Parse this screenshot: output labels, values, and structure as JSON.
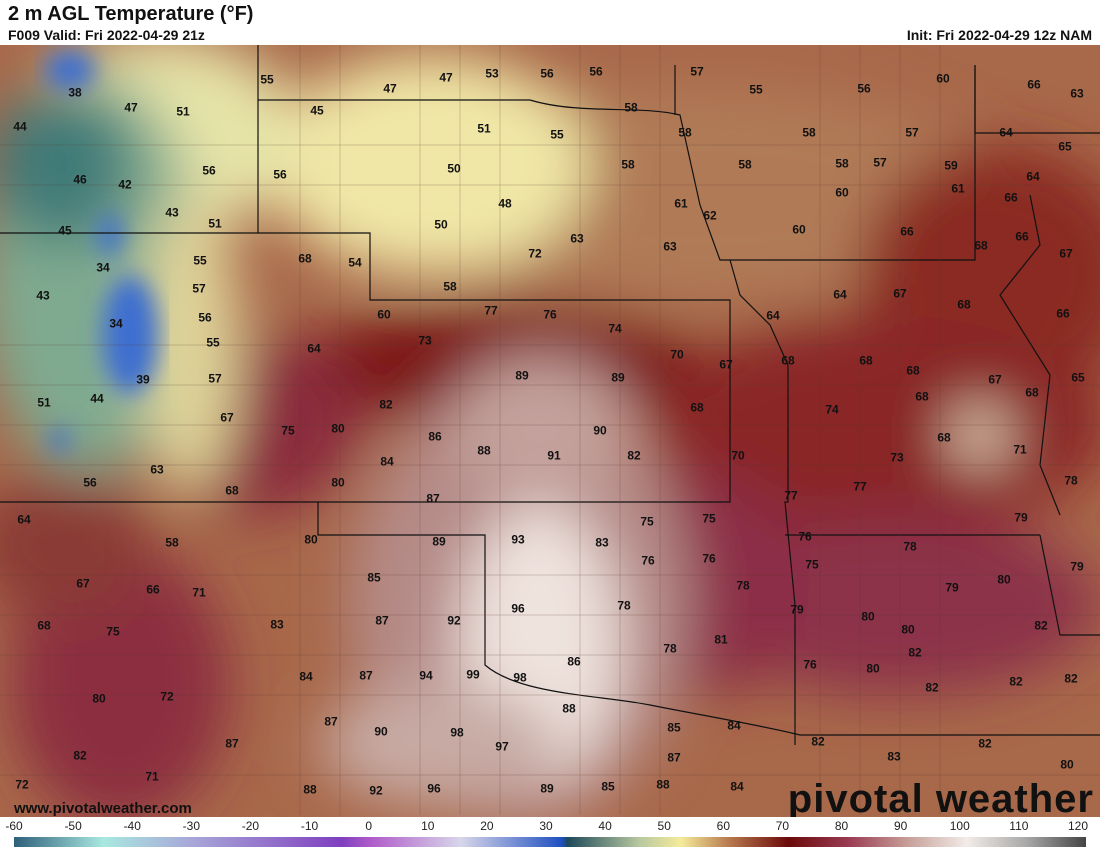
{
  "header": {
    "title": "2 m AGL Temperature (°F)",
    "valid": "F009 Valid: Fri 2022-04-29 21z",
    "init": "Init: Fri 2022-04-29 12z NAM"
  },
  "map": {
    "variable": "2 m temperature",
    "unit": "°F",
    "station_values": [
      38,
      47,
      51,
      44,
      46,
      42,
      56,
      43,
      51,
      45,
      34,
      55,
      43,
      57,
      56,
      34,
      55,
      39,
      57,
      51,
      44,
      67,
      63,
      56,
      68,
      55,
      47,
      47,
      53,
      56,
      56,
      57,
      55,
      56,
      60,
      66,
      63,
      45,
      51,
      55,
      58,
      58,
      58,
      57,
      64,
      65,
      56,
      50,
      58,
      58,
      58,
      57,
      59,
      61,
      64,
      66,
      48,
      50,
      61,
      62,
      60,
      60,
      66,
      68,
      66,
      67,
      68,
      54,
      72,
      63,
      63,
      58,
      64,
      67,
      68,
      66,
      60,
      77,
      76,
      74,
      64,
      73,
      64,
      70,
      67,
      68,
      68,
      68,
      67,
      65,
      89,
      89,
      68,
      68,
      82,
      75,
      80,
      68,
      74,
      86,
      90,
      68,
      71,
      88,
      91,
      82,
      70,
      73,
      84,
      80,
      77,
      77,
      78,
      87,
      75,
      75,
      79,
      64,
      80,
      89,
      93,
      83,
      76,
      78,
      58,
      85,
      76,
      76,
      75,
      79,
      80,
      79,
      67,
      66,
      71,
      78,
      96,
      78,
      79,
      80,
      80,
      82,
      68,
      75,
      83,
      87,
      92,
      81,
      82,
      78,
      76,
      80,
      86,
      84,
      87,
      94,
      99,
      98,
      82,
      82,
      82,
      80,
      72,
      88,
      87,
      90,
      98,
      85,
      84,
      87,
      97,
      82,
      82,
      82,
      71,
      87,
      83,
      80,
      72,
      88,
      92,
      96,
      89,
      85,
      88,
      84
    ]
  },
  "watermark": {
    "site": "www.pivotalweather.com",
    "logo": "pivotal weather"
  },
  "colorbar": {
    "ticks": [
      "-60",
      "-50",
      "-40",
      "-30",
      "-20",
      "-10",
      "0",
      "10",
      "20",
      "30",
      "40",
      "50",
      "60",
      "70",
      "80",
      "90",
      "100",
      "110",
      "120"
    ],
    "range": [
      -60,
      120
    ],
    "stops": [
      {
        "value": -60,
        "color": "#2e5f7a"
      },
      {
        "value": -45,
        "color": "#a8e8e0"
      },
      {
        "value": -30,
        "color": "#a7a6d8"
      },
      {
        "value": -5,
        "color": "#7f3fbf"
      },
      {
        "value": 0,
        "color": "#b05cc9"
      },
      {
        "value": 15,
        "color": "#d8d6ea"
      },
      {
        "value": 32,
        "color": "#1f4fc0"
      },
      {
        "value": 33,
        "color": "#1e4a5a"
      },
      {
        "value": 45,
        "color": "#b8c8a0"
      },
      {
        "value": 52,
        "color": "#f5eb9a"
      },
      {
        "value": 60,
        "color": "#b87a4e"
      },
      {
        "value": 70,
        "color": "#6b0a0a"
      },
      {
        "value": 80,
        "color": "#9a3a52"
      },
      {
        "value": 90,
        "color": "#c79e98"
      },
      {
        "value": 100,
        "color": "#f2ece8"
      },
      {
        "value": 110,
        "color": "#a8a8a8"
      },
      {
        "value": 120,
        "color": "#444444"
      }
    ]
  }
}
